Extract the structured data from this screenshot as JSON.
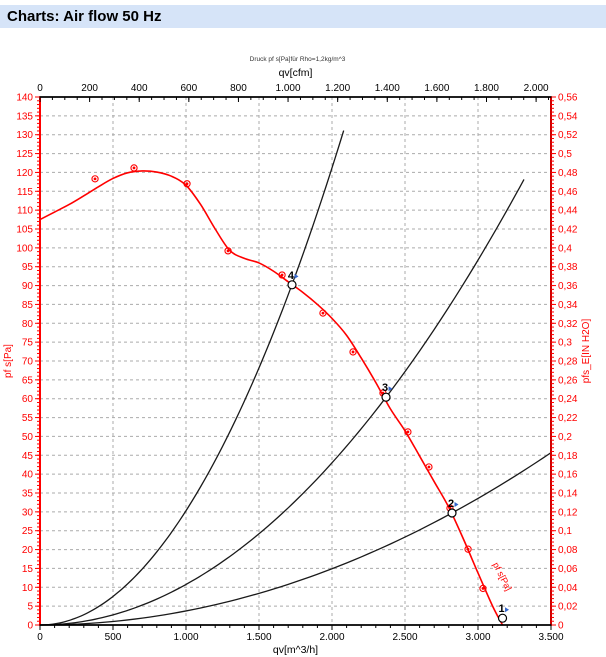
{
  "header": {
    "title": "Charts: Air flow 50 Hz"
  },
  "chart_data": {
    "type": "line",
    "note": "Druck pf s[Pa]für Rho=1,2kg/m^3",
    "axes": {
      "top": {
        "label": "qv[cfm]",
        "min": 0,
        "max": 2000,
        "major": 200,
        "minor": 50,
        "cfm_per_m3h": 0.58858,
        "tick_values": [
          0,
          200,
          400,
          600,
          800,
          1000,
          1200,
          1400,
          1600,
          1800,
          2000
        ],
        "tick_labels": [
          "0",
          "200",
          "400",
          "600",
          "800",
          "1.000",
          "1.200",
          "1.400",
          "1.600",
          "1.800",
          "2.000"
        ]
      },
      "bottom": {
        "label": "qv[m^3/h]",
        "min": 0,
        "max": 3500,
        "major": 500,
        "minor": 100,
        "tick_values": [
          0,
          500,
          1000,
          1500,
          2000,
          2500,
          3000,
          3500
        ],
        "tick_labels": [
          "0",
          "500",
          "1.000",
          "1.500",
          "2.000",
          "2.500",
          "3.000",
          "3.500"
        ]
      },
      "left": {
        "label": "pf s[Pa]",
        "min": 0,
        "max": 140,
        "major": 5,
        "minor": 1,
        "tick_values": [
          0,
          5,
          10,
          15,
          20,
          25,
          30,
          35,
          40,
          45,
          50,
          55,
          60,
          65,
          70,
          75,
          80,
          85,
          90,
          95,
          100,
          105,
          110,
          115,
          120,
          125,
          130,
          135,
          140
        ],
        "tick_labels": [
          "0",
          "5",
          "10",
          "15",
          "20",
          "25",
          "30",
          "35",
          "40",
          "45",
          "50",
          "55",
          "60",
          "65",
          "70",
          "75",
          "80",
          "85",
          "90",
          "95",
          "100",
          "105",
          "110",
          "115",
          "120",
          "125",
          "130",
          "135",
          "140"
        ]
      },
      "right": {
        "label": "pfs_E[IN H2O]",
        "min": 0,
        "max": 0.56,
        "major": 0.02,
        "minor": 0.004,
        "tick_values": [
          0,
          0.02,
          0.04,
          0.06,
          0.08,
          0.1,
          0.12,
          0.14,
          0.16,
          0.18,
          0.2,
          0.22,
          0.24,
          0.26,
          0.28,
          0.3,
          0.32,
          0.34,
          0.36,
          0.38,
          0.4,
          0.42,
          0.44,
          0.46,
          0.48,
          0.5,
          0.52,
          0.54,
          0.56
        ],
        "tick_labels": [
          "0",
          "0,02",
          "0,04",
          "0,06",
          "0,08",
          "0,1",
          "0,12",
          "0,14",
          "0,16",
          "0,18",
          "0,2",
          "0,22",
          "0,24",
          "0,26",
          "0,28",
          "0,3",
          "0,32",
          "0,34",
          "0,36",
          "0,38",
          "0,4",
          "0,42",
          "0,44",
          "0,46",
          "0,48",
          "0,5",
          "0,52",
          "0,54",
          "0,56"
        ]
      }
    },
    "fan_curve": {
      "name": "fan pressure curve pf s[Pa]",
      "color": "#ff0000",
      "points": [
        [
          0,
          107.5
        ],
        [
          100,
          109.5
        ],
        [
          200,
          111.5
        ],
        [
          300,
          113.8
        ],
        [
          400,
          116.2
        ],
        [
          500,
          118.4
        ],
        [
          600,
          119.9
        ],
        [
          700,
          120.4
        ],
        [
          800,
          120.1
        ],
        [
          900,
          119.0
        ],
        [
          1000,
          116.6
        ],
        [
          1100,
          111.5
        ],
        [
          1200,
          105.0
        ],
        [
          1300,
          99.3
        ],
        [
          1400,
          97.2
        ],
        [
          1500,
          96.0
        ],
        [
          1600,
          93.8
        ],
        [
          1700,
          91.0
        ],
        [
          1800,
          88.2
        ],
        [
          1900,
          85.0
        ],
        [
          2000,
          81.3
        ],
        [
          2100,
          76.8
        ],
        [
          2200,
          70.8
        ],
        [
          2300,
          64.3
        ],
        [
          2400,
          57.3
        ],
        [
          2500,
          51.5
        ],
        [
          2600,
          44.8
        ],
        [
          2700,
          38.0
        ],
        [
          2800,
          31.2
        ],
        [
          2900,
          22.8
        ],
        [
          3000,
          13.8
        ],
        [
          3100,
          5.0
        ],
        [
          3168,
          0
        ]
      ]
    },
    "measured_points": {
      "color": "#ff0000",
      "points": [
        [
          377,
          118.3
        ],
        [
          644,
          121.2
        ],
        [
          1007,
          117.0
        ],
        [
          1288,
          99.2
        ],
        [
          1658,
          92.8
        ],
        [
          1938,
          82.7
        ],
        [
          2144,
          72.4
        ],
        [
          2349,
          61.5
        ],
        [
          2520,
          51.2
        ],
        [
          2664,
          41.9
        ],
        [
          2808,
          31.0
        ],
        [
          2932,
          20.1
        ],
        [
          3034,
          9.7
        ]
      ]
    },
    "system_curves": [
      {
        "name": "system curve through point 4",
        "k": 3.03e-05,
        "q_end": 2080
      },
      {
        "name": "system curve through point 3",
        "k": 1.075e-05,
        "q_end": 3315
      },
      {
        "name": "system curve through point 2",
        "k": 3.73e-06,
        "q_end": 3500
      }
    ],
    "duty_points": [
      {
        "label": "1",
        "q": 3168,
        "p": 1.8
      },
      {
        "label": "2",
        "q": 2822,
        "p": 29.7
      },
      {
        "label": "3",
        "q": 2370,
        "p": 60.4
      },
      {
        "label": "4",
        "q": 1726,
        "p": 90.2
      }
    ],
    "curve_label": {
      "text": "pf s[Pa]",
      "q": 3120,
      "p": 12.5,
      "angle": 63
    },
    "colors": {
      "axis_red": "#ff0000",
      "right_spine_red": "#cc0000",
      "axis_black": "#000000",
      "grid": "#ababab",
      "system_curve": "#1a1a1a",
      "note_text": "#333333",
      "duty_marker_blue": "#3366cc",
      "titlebar_bg": "#d6e4f8"
    }
  }
}
